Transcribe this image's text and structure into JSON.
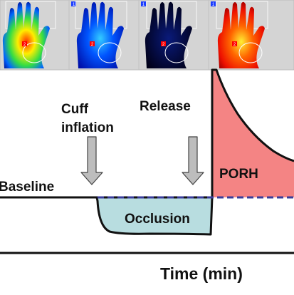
{
  "figure": {
    "panels": [
      {
        "id": "1",
        "marker": "2",
        "colormap": "rainbow"
      },
      {
        "id": "1",
        "marker": "2",
        "colormap": "blue-dominant"
      },
      {
        "id": "1",
        "marker": "2",
        "colormap": "dark-navy"
      },
      {
        "id": "1",
        "marker": "2",
        "colormap": "red-yellow"
      }
    ],
    "labels": {
      "cuff_line1": "Cuff",
      "cuff_line2": "inflation",
      "release": "Release",
      "baseline": "Baseline",
      "occlusion": "Occlusion",
      "porh": "PORH",
      "time_axis": "Time (min)"
    },
    "colors": {
      "occlusion_fill": "#b8dde0",
      "porh_fill": "#f48484",
      "dashed_line": "#3a3d9a",
      "arrow_fill": "#bdbdbd",
      "panel_strip_bg": "#d4d4d4"
    }
  }
}
